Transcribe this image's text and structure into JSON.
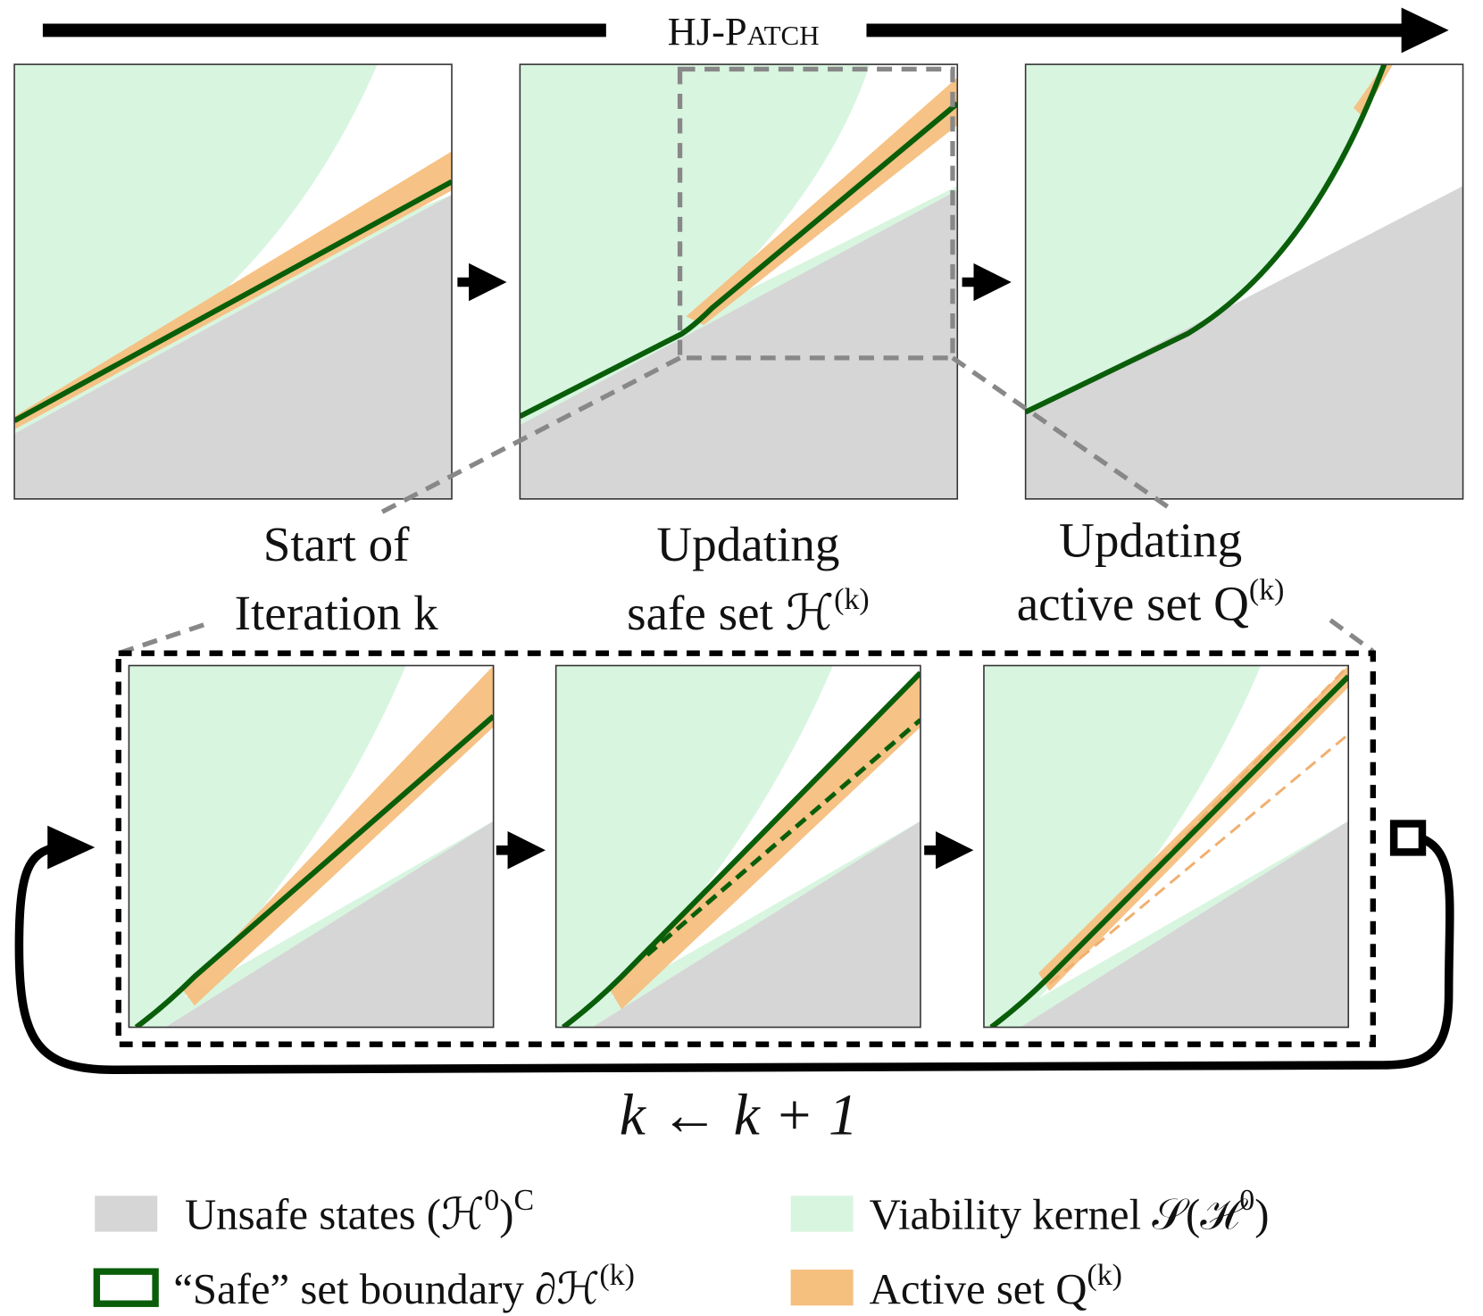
{
  "title": "HJ-Patch",
  "stages": [
    {
      "line1": "Start of",
      "line2": "Iteration k"
    },
    {
      "line1": "Updating",
      "line2": "safe set ℋ",
      "sup": "(k)"
    },
    {
      "line1": "Updating",
      "line2": "active set Q",
      "sup": "(k)"
    }
  ],
  "loop_label": "k ← k + 1",
  "legend": [
    {
      "label": "Unsafe states (ℋ",
      "sup": "0",
      "tail": ")",
      "tail_sup": "C"
    },
    {
      "label": "Viability kernel 𝒮(ℋ",
      "sup": "0",
      "tail": ")"
    },
    {
      "label": "“Safe” set boundary ∂ℋ",
      "sup": "(k)"
    },
    {
      "label": "Active set Q",
      "sup": "(k)"
    }
  ]
}
